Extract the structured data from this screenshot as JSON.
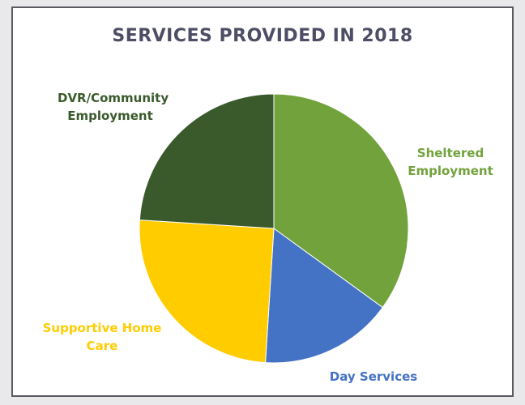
{
  "chart_data": {
    "type": "pie",
    "title": "SERVICES PROVIDED IN 2018",
    "slices": [
      {
        "label": "Sheltered Employment",
        "value": 35,
        "color": "#71a23b"
      },
      {
        "label": "Day Services",
        "value": 16,
        "color": "#4472c4"
      },
      {
        "label": "Supportive Home Care",
        "value": 25,
        "color": "#ffcc00"
      },
      {
        "label": "DVR/Community Employment",
        "value": 24,
        "color": "#3a5a2c"
      }
    ],
    "legend": "none",
    "data_labels": "category names outside slices"
  }
}
